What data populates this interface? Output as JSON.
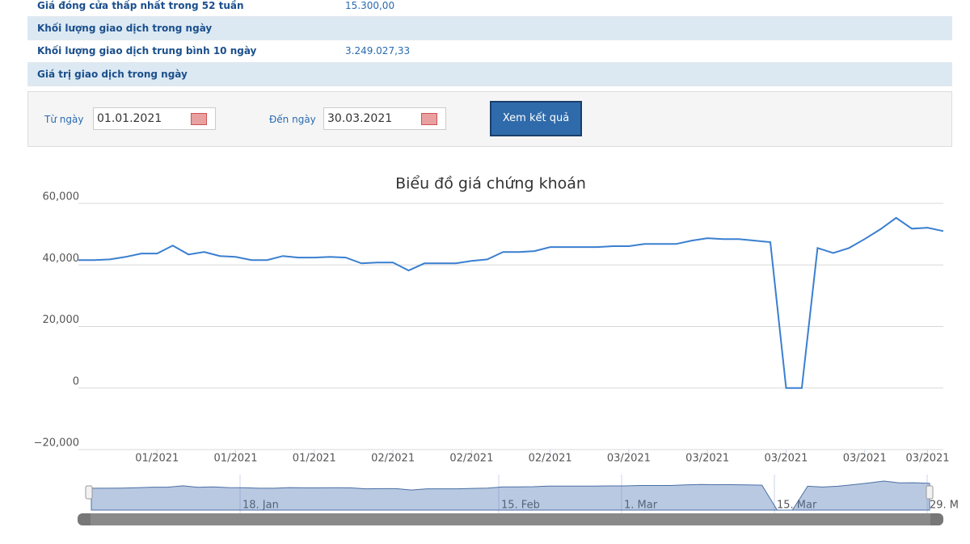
{
  "table": {
    "rows": [
      {
        "label": "Giá đóng cửa thấp nhất trong 52 tuần",
        "value": "15.300,00"
      },
      {
        "label": "Khối lượng giao dịch trong ngày"
      },
      {
        "label": "Khối lượng giao dịch trung bình 10 ngày",
        "value": "3.249.027,33"
      },
      {
        "label": "Giá trị giao dịch trong ngày"
      }
    ]
  },
  "form": {
    "from_label": "Từ ngày",
    "from_value": "01.01.2021",
    "to_label": "Đến ngày",
    "to_value": "30.03.2021",
    "button": "Xem kết quả"
  },
  "chart_data": {
    "type": "line",
    "title": "Biểu đồ giá chứng khoán",
    "color": "#3a7fd0",
    "grid": true,
    "categories": [
      null,
      null,
      null,
      null,
      null,
      "01/2021",
      null,
      null,
      null,
      null,
      "01/2021",
      null,
      null,
      null,
      null,
      "01/2021",
      null,
      null,
      null,
      null,
      "02/2021",
      null,
      null,
      null,
      null,
      "02/2021",
      null,
      null,
      null,
      null,
      "02/2021",
      null,
      null,
      null,
      null,
      "03/2021",
      null,
      null,
      null,
      null,
      "03/2021",
      null,
      null,
      null,
      null,
      "03/2021",
      null,
      null,
      null,
      null,
      "03/2021",
      null,
      null,
      null,
      "03/2021",
      null
    ],
    "values": [
      41600,
      41600,
      41800,
      42600,
      43700,
      43700,
      46300,
      43400,
      44200,
      42900,
      42600,
      41600,
      41600,
      42900,
      42400,
      42400,
      42600,
      42400,
      40500,
      40800,
      40800,
      38200,
      40500,
      40500,
      40500,
      41300,
      41800,
      44200,
      44200,
      44500,
      45800,
      45800,
      45800,
      45800,
      46100,
      46100,
      46800,
      46800,
      46800,
      47900,
      48700,
      48400,
      48400,
      47900,
      47400,
      0,
      0,
      45500,
      43900,
      45500,
      48400,
      51600,
      55300,
      51800,
      52100,
      51000
    ],
    "ylim": [
      -20000,
      60000
    ],
    "yticks": [
      {
        "value": -20000,
        "label": "−20,000"
      },
      0,
      {
        "value": 20000,
        "label": "20,000"
      },
      {
        "value": 40000,
        "label": "40,000"
      },
      {
        "value": 60000,
        "label": "60,000"
      }
    ],
    "navigator": {
      "labels": [
        "18. Jan",
        "15. Feb",
        "1. Mar",
        "15. Mar",
        "29. M"
      ]
    }
  }
}
